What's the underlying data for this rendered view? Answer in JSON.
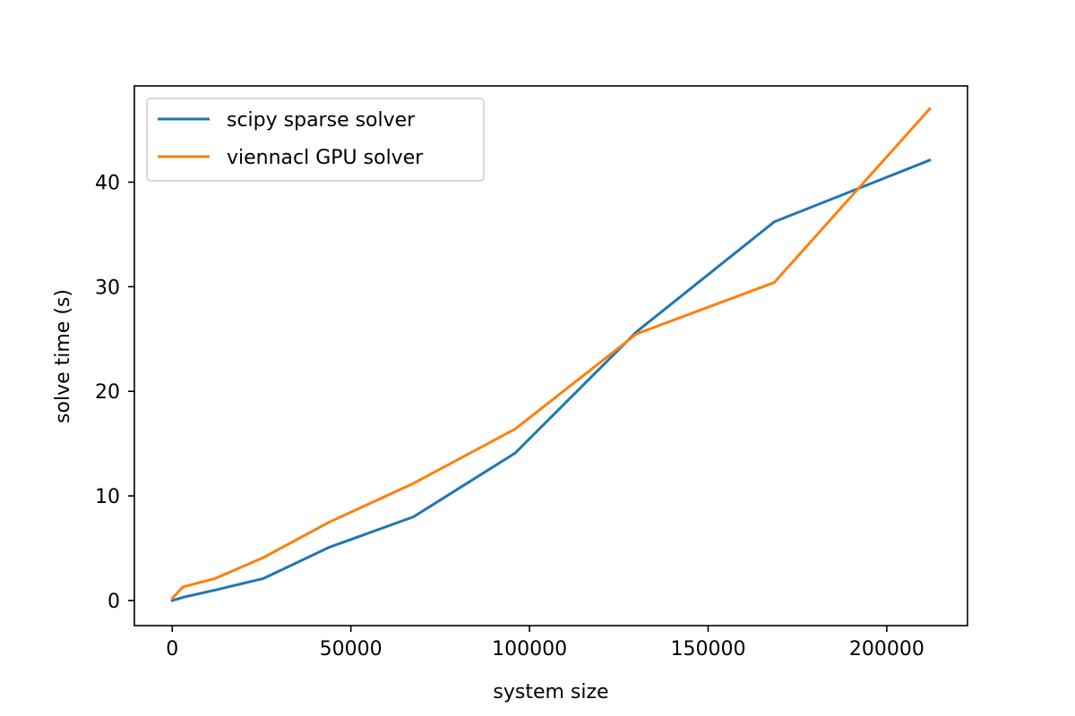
{
  "chart_data": {
    "type": "line",
    "title": "",
    "xlabel": "system size",
    "ylabel": "solve time (s)",
    "xlim": [
      -10600,
      222600
    ],
    "ylim": [
      -2.4,
      49.2
    ],
    "xticks": [
      0,
      50000,
      100000,
      150000,
      200000
    ],
    "xtick_labels": [
      "0",
      "50000",
      "100000",
      "150000",
      "200000"
    ],
    "yticks": [
      0,
      10,
      20,
      30,
      40
    ],
    "ytick_labels": [
      "0",
      "10",
      "20",
      "30",
      "40"
    ],
    "grid": false,
    "legend_position": "upper-left",
    "series": [
      {
        "name": "scipy sparse solver",
        "color": "#1f77b4",
        "x": [
          0,
          3000,
          12000,
          25500,
          44000,
          67500,
          96000,
          130000,
          168500,
          212000
        ],
        "y": [
          0,
          0.3,
          1.0,
          2.1,
          5.1,
          8.0,
          14.1,
          25.7,
          36.2,
          42.1
        ]
      },
      {
        "name": "viennacl GPU solver",
        "color": "#ff7f0e",
        "x": [
          0,
          3000,
          12000,
          25500,
          44000,
          67500,
          96000,
          130000,
          168500,
          212000
        ],
        "y": [
          0.2,
          1.3,
          2.1,
          4.1,
          7.5,
          11.2,
          16.4,
          25.5,
          30.4,
          47.0
        ]
      }
    ]
  }
}
